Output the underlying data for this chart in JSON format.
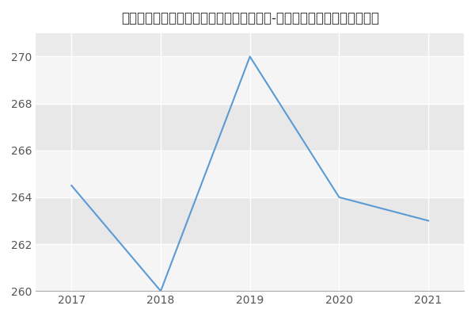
{
  "title": "内蒙古科技大学材料与冶金学院材料工程（-历年复试）研究生录取分数线",
  "x": [
    2017,
    2018,
    2019,
    2020,
    2021
  ],
  "y": [
    264.5,
    260,
    270,
    264,
    263
  ],
  "line_color": "#5b9bd5",
  "background_color": "#ffffff",
  "plot_bg_color": "#ebebeb",
  "band_color_light": "#f5f5f5",
  "band_color_dark": "#e8e8e8",
  "ylim": [
    260,
    271
  ],
  "xlim": [
    2016.6,
    2021.4
  ],
  "yticks": [
    260,
    262,
    264,
    266,
    268,
    270
  ],
  "xticks": [
    2017,
    2018,
    2019,
    2020,
    2021
  ],
  "title_fontsize": 12,
  "tick_fontsize": 10
}
